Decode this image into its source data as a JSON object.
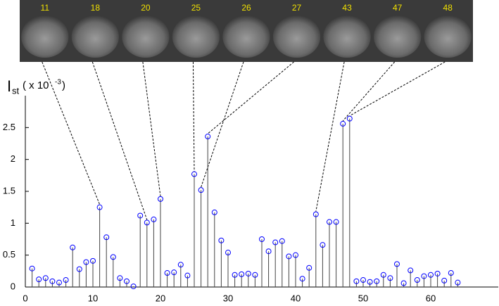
{
  "chart_data": {
    "type": "stem",
    "ylabel": {
      "main": "I",
      "sub": "st",
      "text": "( x 10",
      "sup": "-3",
      "close": ")"
    },
    "x": [
      1,
      2,
      3,
      4,
      5,
      6,
      7,
      8,
      9,
      10,
      11,
      12,
      13,
      14,
      15,
      16,
      17,
      18,
      19,
      20,
      21,
      22,
      23,
      24,
      25,
      26,
      27,
      28,
      29,
      30,
      31,
      32,
      33,
      34,
      35,
      36,
      37,
      38,
      39,
      40,
      41,
      42,
      43,
      44,
      45,
      46,
      47,
      48,
      49,
      50,
      51,
      52,
      53,
      54,
      55,
      56,
      57,
      58,
      59,
      60,
      61,
      62,
      63,
      64
    ],
    "values": [
      0.29,
      0.12,
      0.14,
      0.09,
      0.07,
      0.11,
      0.62,
      0.28,
      0.39,
      0.41,
      1.25,
      0.78,
      0.47,
      0.14,
      0.09,
      0.01,
      1.12,
      1.01,
      1.06,
      1.38,
      0.22,
      0.23,
      0.35,
      0.18,
      1.77,
      1.52,
      2.36,
      1.17,
      0.73,
      0.54,
      0.19,
      0.2,
      0.21,
      0.19,
      0.75,
      0.56,
      0.7,
      0.72,
      0.48,
      0.5,
      0.13,
      0.3,
      1.14,
      0.66,
      1.02,
      1.02,
      2.56,
      2.64,
      0.09,
      0.11,
      0.08,
      0.09,
      0.19,
      0.14,
      0.36,
      0.06,
      0.26,
      0.11,
      0.17,
      0.19,
      0.21,
      0.1,
      0.22,
      0.07
    ],
    "color": "#0000ff",
    "stem_color": "#444444",
    "frames": [
      11,
      18,
      20,
      25,
      26,
      27,
      43,
      47,
      48
    ],
    "xlim": [
      0,
      70
    ],
    "ylim": [
      0,
      3
    ],
    "xticks": [
      0,
      10,
      20,
      30,
      40,
      50,
      60
    ],
    "yticks": [
      0,
      0.5,
      1,
      1.5,
      2,
      2.5
    ]
  }
}
